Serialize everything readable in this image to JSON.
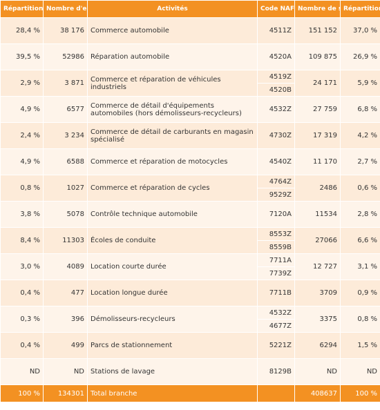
{
  "headers": {
    "repartition_entreprises": "Répartition",
    "nombre_entreprises": "Nombre d'entreprises",
    "activites": "Activités",
    "code_naf": "Code NAF",
    "nombre_salaries": "Nombre de salariés",
    "repartition_salaries": "Répartition"
  },
  "rows": [
    {
      "rep": "28,4 %",
      "nb": "38 176",
      "act": "Commerce automobile",
      "codes": [
        "4511Z"
      ],
      "sal": "151 152",
      "rep2": "37,0 %"
    },
    {
      "rep": "39,5 %",
      "nb": "52986",
      "act": "Réparation automobile",
      "codes": [
        "4520A"
      ],
      "sal": "109 875",
      "rep2": "26,9 %"
    },
    {
      "rep": "2,9 %",
      "nb": "3 871",
      "act": "Commerce et réparation de véhicules industriels",
      "codes": [
        "4519Z",
        "4520B"
      ],
      "sal": "24 171",
      "rep2": "5,9 %"
    },
    {
      "rep": "4,9 %",
      "nb": "6577",
      "act": "Commerce de détail d'équipements automobiles (hors démolisseurs-recycleurs)",
      "codes": [
        "4532Z"
      ],
      "sal": "27 759",
      "rep2": "6,8 %"
    },
    {
      "rep": "2,4 %",
      "nb": "3 234",
      "act": "Commerce de détail de carburants en magasin spécialisé",
      "codes": [
        "4730Z"
      ],
      "sal": "17 319",
      "rep2": "4,2 %"
    },
    {
      "rep": "4,9 %",
      "nb": "6588",
      "act": "Commerce et réparation de motocycles",
      "codes": [
        "4540Z"
      ],
      "sal": "11 170",
      "rep2": "2,7 %"
    },
    {
      "rep": "0,8 %",
      "nb": "1027",
      "act": "Commerce et réparation de cycles",
      "codes": [
        "4764Z",
        "9529Z"
      ],
      "sal": "2486",
      "rep2": "0,6 %"
    },
    {
      "rep": "3,8 %",
      "nb": "5078",
      "act": "Contrôle technique automobile",
      "codes": [
        "7120A"
      ],
      "sal": "11534",
      "rep2": "2,8 %"
    },
    {
      "rep": "8,4 %",
      "nb": "11303",
      "act": "Écoles de conduite",
      "codes": [
        "8553Z",
        "8559B"
      ],
      "sal": "27066",
      "rep2": "6,6 %"
    },
    {
      "rep": "3,0 %",
      "nb": "4089",
      "act": "Location courte durée",
      "codes": [
        "7711A",
        "7739Z"
      ],
      "sal": "12 727",
      "rep2": "3,1 %"
    },
    {
      "rep": "0,4 %",
      "nb": "477",
      "act": "Location longue durée",
      "codes": [
        "7711B"
      ],
      "sal": "3709",
      "rep2": "0,9 %"
    },
    {
      "rep": "0,3 %",
      "nb": "396",
      "act": "Démolisseurs-recycleurs",
      "codes": [
        "4532Z",
        "4677Z"
      ],
      "sal": "3375",
      "rep2": "0,8 %"
    },
    {
      "rep": "0,4 %",
      "nb": "499",
      "act": "Parcs de stationnement",
      "codes": [
        "5221Z"
      ],
      "sal": "6294",
      "rep2": "1,5 %"
    },
    {
      "rep": "ND",
      "nb": "ND",
      "act": "Stations de lavage",
      "codes": [
        "8129B"
      ],
      "sal": "ND",
      "rep2": "ND"
    }
  ],
  "total": {
    "rep": "100 %",
    "nb": "134301",
    "act": "Total branche",
    "code": "",
    "sal": "408637",
    "rep2": "100 %"
  }
}
